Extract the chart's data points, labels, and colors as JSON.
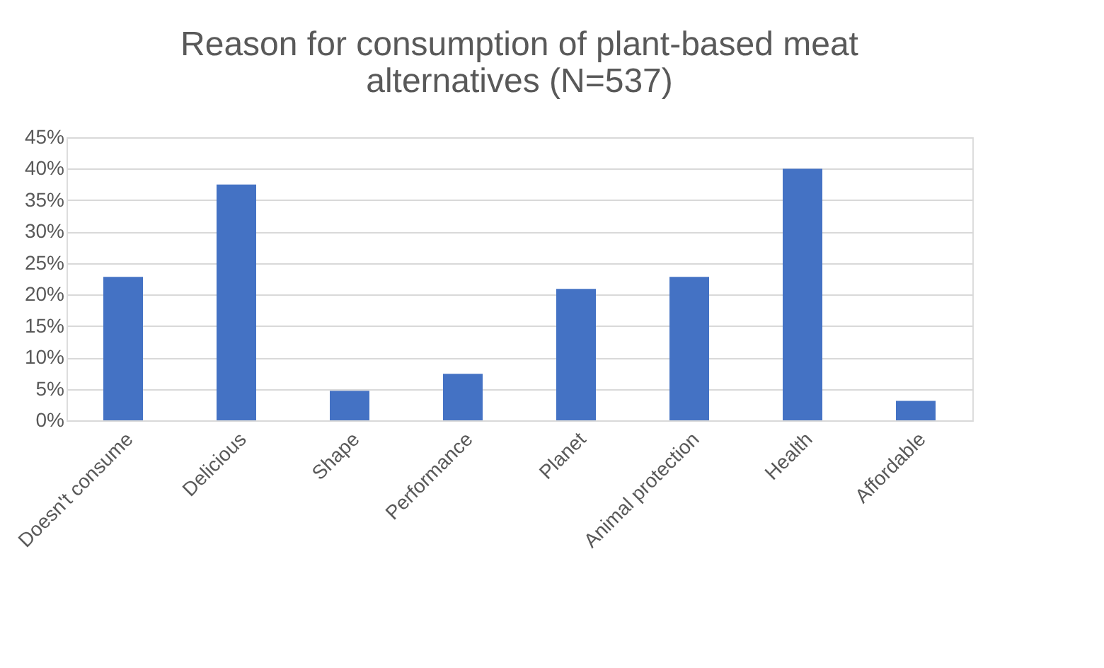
{
  "chart_data": {
    "type": "bar",
    "title": "Reason for consumption of plant-based meat alternatives (N=537)",
    "categories": [
      "Doesn't consume",
      "Delicious",
      "Shape",
      "Performance",
      "Planet",
      "Animal protection",
      "Health",
      "Affordable"
    ],
    "values": [
      22.8,
      37.5,
      4.7,
      7.4,
      20.9,
      22.8,
      40.0,
      3.1
    ],
    "color": "#4472c4",
    "ylim": [
      0,
      45
    ],
    "yticks": [
      {
        "value": 0,
        "label": "0%"
      },
      {
        "value": 5,
        "label": "5%"
      },
      {
        "value": 10,
        "label": "10%"
      },
      {
        "value": 15,
        "label": "15%"
      },
      {
        "value": 20,
        "label": "20%"
      },
      {
        "value": 25,
        "label": "25%"
      },
      {
        "value": 30,
        "label": "30%"
      },
      {
        "value": 35,
        "label": "35%"
      },
      {
        "value": 40,
        "label": "40%"
      },
      {
        "value": 45,
        "label": "45%"
      }
    ],
    "grid": "y"
  }
}
